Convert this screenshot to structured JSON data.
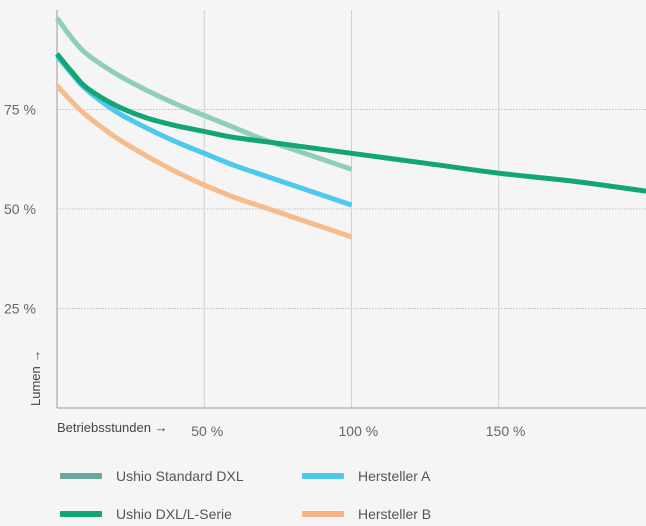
{
  "chart_data": {
    "type": "line",
    "xlabel": "Betriebsstunden →",
    "ylabel": "Lumen →",
    "x_ticks": [
      {
        "value": 50,
        "label": "50 %"
      },
      {
        "value": 100,
        "label": "100 %"
      },
      {
        "value": 150,
        "label": "150 %"
      }
    ],
    "y_ticks": [
      {
        "value": 25,
        "label": "25 %"
      },
      {
        "value": 50,
        "label": "50 %"
      },
      {
        "value": 75,
        "label": "75 %"
      }
    ],
    "xlim": [
      0,
      200
    ],
    "ylim": [
      0,
      100
    ],
    "grid": true,
    "legend_position": "bottom",
    "series": [
      {
        "name": "Ushio Standard DXL",
        "color": "#8ecfb5",
        "legend_color": "#6aa89f",
        "x": [
          0,
          5,
          10,
          20,
          30,
          40,
          50,
          60,
          70,
          80,
          90,
          100
        ],
        "y": [
          98,
          93,
          89,
          84,
          80,
          76.5,
          73.5,
          70.5,
          67.5,
          65,
          62.5,
          60
        ]
      },
      {
        "name": "Hersteller A",
        "color": "#4fc8ee",
        "legend_color": "#4fc8ee",
        "x": [
          0,
          5,
          10,
          20,
          30,
          40,
          50,
          60,
          70,
          80,
          90,
          100
        ],
        "y": [
          88.5,
          84,
          80,
          74.5,
          70.5,
          67,
          64,
          61,
          58.5,
          56,
          53.5,
          51
        ]
      },
      {
        "name": "Hersteller B",
        "color": "#f6bc8c",
        "legend_color": "#f6b184",
        "x": [
          0,
          5,
          10,
          20,
          30,
          40,
          50,
          60,
          70,
          80,
          90,
          100
        ],
        "y": [
          81,
          77,
          73.5,
          68,
          63.5,
          59.5,
          56,
          53,
          50.5,
          48,
          45.5,
          43
        ]
      },
      {
        "name": "Ushio DXL/L-Serie",
        "color": "#13a574",
        "legend_color": "#13a574",
        "x": [
          0,
          5,
          10,
          20,
          30,
          40,
          50,
          60,
          75,
          100,
          125,
          150,
          175,
          200
        ],
        "y": [
          89,
          84.5,
          80.5,
          76,
          73,
          71,
          69.5,
          68,
          66.5,
          64,
          61.5,
          59,
          57,
          54.5
        ]
      }
    ]
  }
}
